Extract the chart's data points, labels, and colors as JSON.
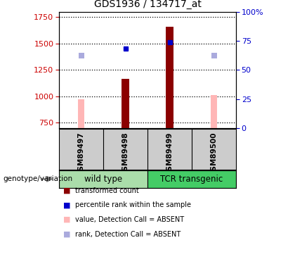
{
  "title": "GDS1936 / 134717_at",
  "samples": [
    "GSM89497",
    "GSM89498",
    "GSM89499",
    "GSM89500"
  ],
  "ylim_left": [
    700,
    1800
  ],
  "ylim_right": [
    0,
    100
  ],
  "yticks_left": [
    750,
    1000,
    1250,
    1500,
    1750
  ],
  "yticks_right": [
    0,
    25,
    50,
    75,
    100
  ],
  "red_bars": [
    null,
    1165,
    1660,
    null
  ],
  "pink_bars": [
    975,
    null,
    null,
    1010
  ],
  "blue_squares": [
    null,
    1455,
    1510,
    null
  ],
  "lavender_squares": [
    1385,
    null,
    null,
    1385
  ],
  "red_color": "#8b0000",
  "pink_color": "#ffb6b6",
  "blue_color": "#0000cc",
  "lavender_color": "#aaaadd",
  "bg_color": "#cccccc",
  "left_axis_color": "#cc0000",
  "right_axis_color": "#0000cc",
  "wt_color": "#aaddaa",
  "tcr_color": "#44cc66",
  "legend": [
    [
      "#8b0000",
      "transformed count"
    ],
    [
      "#0000cc",
      "percentile rank within the sample"
    ],
    [
      "#ffb6b6",
      "value, Detection Call = ABSENT"
    ],
    [
      "#aaaadd",
      "rank, Detection Call = ABSENT"
    ]
  ]
}
